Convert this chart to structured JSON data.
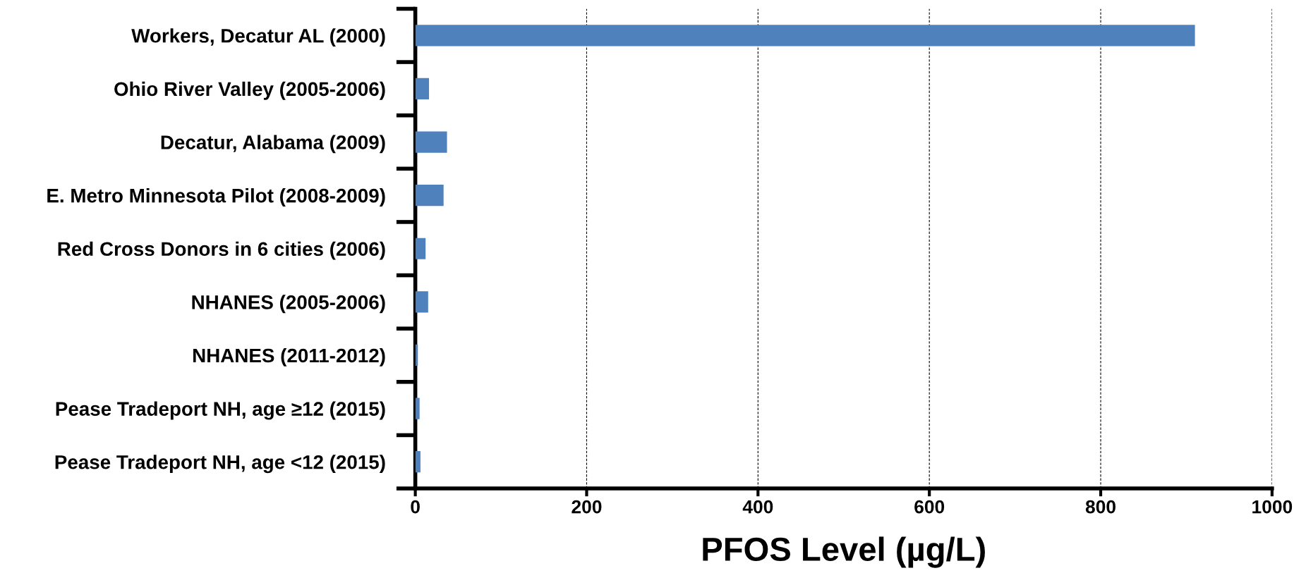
{
  "chart_data": {
    "type": "bar",
    "orientation": "horizontal",
    "xlabel": "PFOS Level (µg/L)",
    "categories": [
      "Workers, Decatur AL (2000)",
      "Ohio River Valley (2005-2006)",
      "Decatur, Alabama (2009)",
      "E. Metro Minnesota Pilot (2008-2009)",
      "Red Cross Donors in 6 cities (2006)",
      "NHANES (2005-2006)",
      "NHANES (2011-2012)",
      "Pease Tradeport NH, age ≥12 (2015)",
      "Pease Tradeport NH, age <12 (2015)"
    ],
    "values": [
      910,
      16,
      37,
      33,
      12,
      15,
      3,
      5,
      6
    ],
    "color": "#4f81bd",
    "xlim": [
      0,
      1000
    ],
    "xticks": [
      0,
      200,
      400,
      600,
      800,
      1000
    ],
    "grid": "x"
  }
}
